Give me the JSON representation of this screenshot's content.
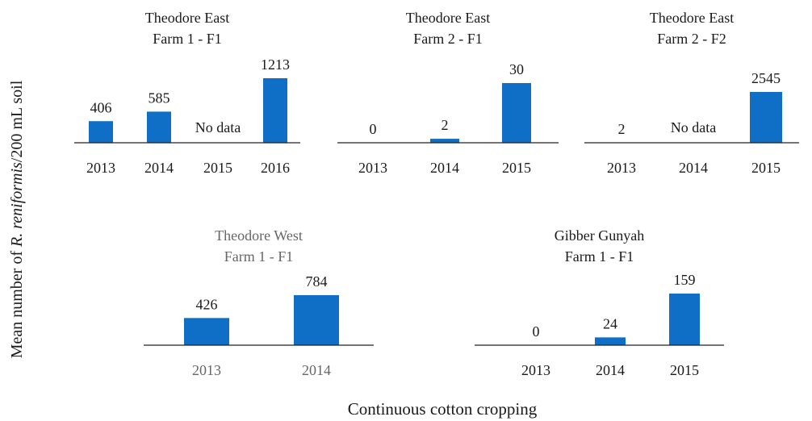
{
  "ylabel": [
    "Mean number of ",
    "R. reniformis",
    "/200 mL soil"
  ],
  "xlabel": "Continuous cotton cropping",
  "chart_data": [
    {
      "type": "bar",
      "title": "Theodore East",
      "subtitle": "Farm 1 - F1",
      "categories": [
        "2013",
        "2014",
        "2015",
        "2016"
      ],
      "values": [
        406,
        585,
        null,
        1213
      ],
      "value_labels": [
        null,
        null,
        "No data",
        null
      ],
      "color": "#0f6fc6",
      "text_color": "#1a1a1a"
    },
    {
      "type": "bar",
      "title": "Theodore East",
      "subtitle": "Farm 2 - F1",
      "categories": [
        "2013",
        "2014",
        "2015"
      ],
      "values": [
        0,
        2,
        30
      ],
      "color": "#0f6fc6",
      "text_color": "#1a1a1a"
    },
    {
      "type": "bar",
      "title": "Theodore East",
      "subtitle": "Farm 2 - F2",
      "categories": [
        "2013",
        "2014",
        "2015"
      ],
      "values": [
        2,
        null,
        2545
      ],
      "value_labels": [
        null,
        "No data",
        null
      ],
      "color": "#0f6fc6",
      "text_color": "#1a1a1a"
    },
    {
      "type": "bar",
      "title": "Theodore West",
      "subtitle": "Farm 1 - F1",
      "categories": [
        "2013",
        "2014"
      ],
      "values": [
        426,
        784
      ],
      "color": "#0f6fc6",
      "text_color": "#666666"
    },
    {
      "type": "bar",
      "title": "Gibber Gunyah",
      "subtitle": "Farm 1 - F1",
      "categories": [
        "2013",
        "2014",
        "2015"
      ],
      "values": [
        0,
        24,
        159
      ],
      "color": "#0f6fc6",
      "text_color": "#1a1a1a"
    }
  ]
}
